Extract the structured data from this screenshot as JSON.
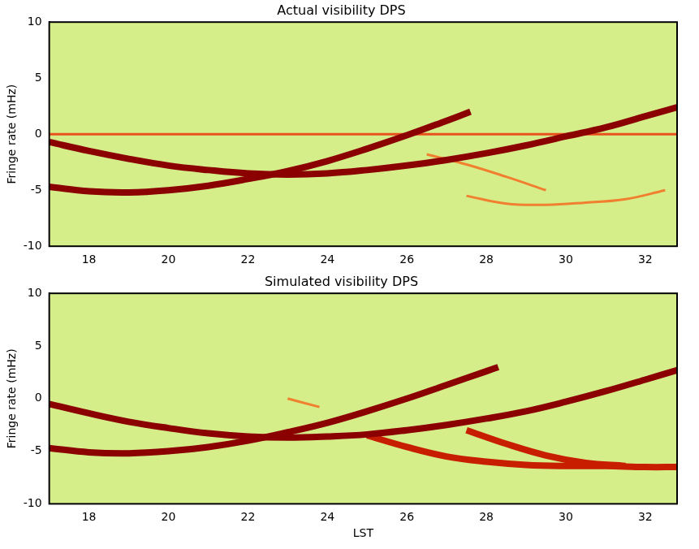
{
  "chart_data": [
    {
      "type": "line",
      "title": "Actual visibility DPS",
      "y_label": "Fringe rate (mHz)",
      "xlim": [
        17,
        32.8
      ],
      "xticks": [
        18,
        20,
        22,
        24,
        26,
        28,
        30,
        32
      ],
      "ylim": [
        -10,
        10
      ],
      "yticks": [
        -10,
        -5,
        0,
        5,
        10
      ],
      "grid": false,
      "series": [
        {
          "color": "#8b0000",
          "line_style": "thick",
          "x": [
            17,
            18,
            19,
            20,
            21,
            22,
            23,
            24,
            25,
            26,
            27,
            28,
            29,
            30,
            31,
            32,
            32.8
          ],
          "values": [
            -0.7,
            -1.5,
            -2.2,
            -2.8,
            -3.2,
            -3.5,
            -3.6,
            -3.5,
            -3.2,
            -2.8,
            -2.3,
            -1.7,
            -1.0,
            -0.2,
            0.6,
            1.6,
            2.4
          ]
        },
        {
          "color": "#8b0000",
          "line_style": "thick",
          "x": [
            17,
            18,
            19,
            20,
            21,
            22,
            23,
            24,
            25,
            26,
            27,
            27.6
          ],
          "values": [
            -4.7,
            -5.1,
            -5.2,
            -5.0,
            -4.6,
            -4.0,
            -3.3,
            -2.4,
            -1.3,
            -0.1,
            1.2,
            2.0
          ]
        },
        {
          "color": "#f08030",
          "line_style": "thin",
          "x": [
            26.5,
            27.5,
            28.5,
            29.5
          ],
          "values": [
            -1.8,
            -2.7,
            -3.8,
            -5.0
          ]
        },
        {
          "color": "#f08030",
          "line_style": "thin",
          "x": [
            27.5,
            28.5,
            29.5,
            30.5,
            31.5,
            32.5
          ],
          "values": [
            -5.5,
            -6.2,
            -6.3,
            -6.1,
            -5.8,
            -5.0
          ]
        },
        {
          "color": "#e8501c",
          "line_style": "thin",
          "x": [
            17,
            32.8
          ],
          "values": [
            0,
            0
          ]
        }
      ]
    },
    {
      "type": "line",
      "title": "Simulated visibility DPS",
      "y_label": "Fringe rate (mHz)",
      "x_label": "LST",
      "xlim": [
        17,
        32.8
      ],
      "xticks": [
        18,
        20,
        22,
        24,
        26,
        28,
        30,
        32
      ],
      "ylim": [
        -10,
        10
      ],
      "yticks": [
        -10,
        -5,
        0,
        5,
        10
      ],
      "grid": false,
      "series": [
        {
          "color": "#8b0000",
          "line_style": "thick",
          "x": [
            17,
            18,
            19,
            20,
            21,
            22,
            23,
            24,
            25,
            26,
            27,
            28,
            29,
            30,
            31,
            32,
            32.8
          ],
          "values": [
            -0.5,
            -1.4,
            -2.2,
            -2.8,
            -3.3,
            -3.6,
            -3.7,
            -3.6,
            -3.4,
            -3.0,
            -2.5,
            -1.9,
            -1.2,
            -0.3,
            0.7,
            1.8,
            2.7
          ]
        },
        {
          "color": "#8b0000",
          "line_style": "thick",
          "x": [
            17,
            18,
            19,
            20,
            21,
            22,
            23,
            24,
            25,
            26,
            27,
            28,
            28.3
          ],
          "values": [
            -4.7,
            -5.1,
            -5.2,
            -5.0,
            -4.6,
            -4.0,
            -3.2,
            -2.3,
            -1.2,
            0.0,
            1.3,
            2.6,
            3.0
          ]
        },
        {
          "color": "#f08030",
          "line_style": "thin",
          "x": [
            23,
            23.8
          ],
          "values": [
            0,
            -0.8
          ]
        },
        {
          "color": "#c81e00",
          "line_style": "thick",
          "x": [
            25,
            26,
            27,
            28,
            29,
            30,
            31,
            32,
            32.8
          ],
          "values": [
            -3.5,
            -4.6,
            -5.5,
            -6.0,
            -6.3,
            -6.4,
            -6.4,
            -6.5,
            -6.5
          ]
        },
        {
          "color": "#c81e00",
          "line_style": "thick",
          "x": [
            27.5,
            28.5,
            29.5,
            30.5,
            31.5
          ],
          "values": [
            -3.0,
            -4.3,
            -5.4,
            -6.1,
            -6.4
          ]
        }
      ]
    }
  ]
}
